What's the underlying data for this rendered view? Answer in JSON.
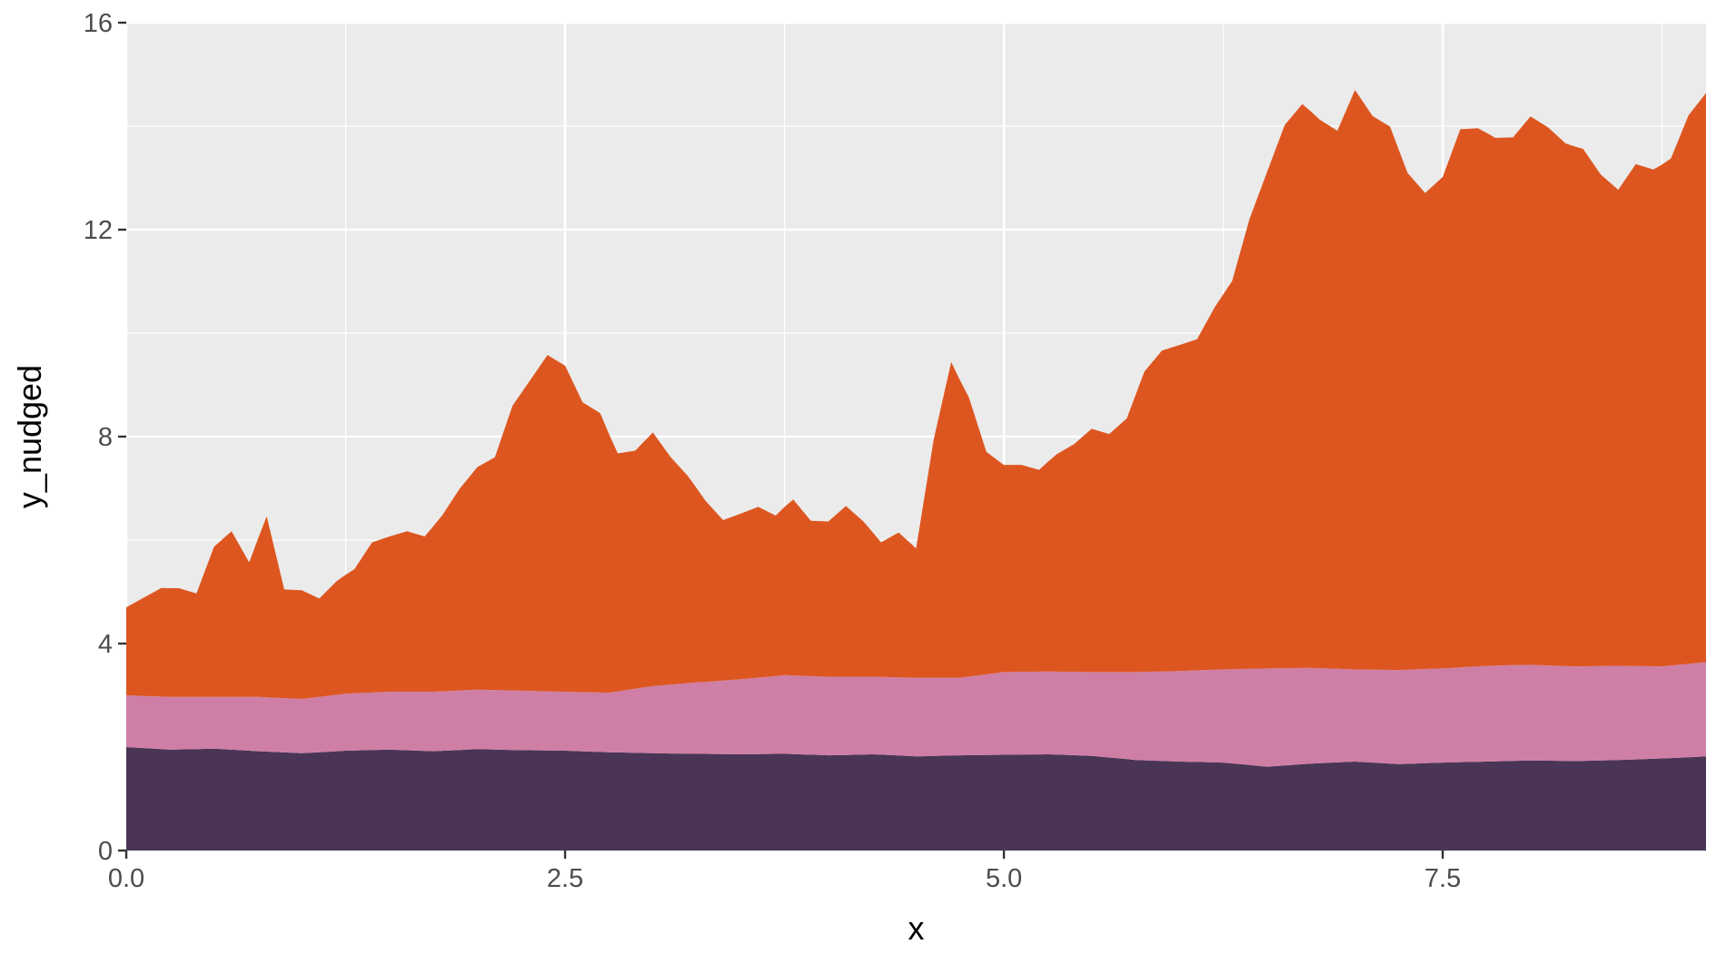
{
  "chart_data": {
    "type": "area",
    "stacked": true,
    "title": "",
    "xlabel": "x",
    "ylabel": "y_nudged",
    "xlim": [
      0,
      9.0
    ],
    "ylim": [
      0,
      16
    ],
    "x_ticks": [
      0.0,
      2.5,
      5.0,
      7.5
    ],
    "x_tick_labels": [
      "0.0",
      "2.5",
      "5.0",
      "7.5"
    ],
    "y_ticks": [
      0,
      4,
      8,
      12,
      16
    ],
    "y_tick_labels": [
      "0",
      "4",
      "8",
      "12",
      "16"
    ],
    "grid": true,
    "legend": "none",
    "colors": {
      "panel_background": "#EBEBEB",
      "grid_line": "#FFFFFF",
      "series": [
        "#4A3556",
        "#CF7FA5",
        "#DD5620"
      ]
    },
    "series": [
      {
        "x": [
          0,
          0.25,
          0.5,
          0.75,
          1.0,
          1.25,
          1.5,
          1.75,
          2.0,
          2.25,
          2.5,
          2.75,
          3.0,
          3.25,
          3.5,
          3.75,
          4.0,
          4.25,
          4.5,
          4.75,
          5.0,
          5.25,
          5.5,
          5.75,
          6.0,
          6.25,
          6.5,
          6.75,
          7.0,
          7.25,
          7.5,
          7.75,
          8.0,
          8.25,
          8.5,
          8.75,
          9.0
        ],
        "values": [
          2.0,
          1.95,
          1.97,
          1.92,
          1.88,
          1.93,
          1.95,
          1.92,
          1.96,
          1.94,
          1.93,
          1.9,
          1.88,
          1.87,
          1.86,
          1.87,
          1.84,
          1.86,
          1.82,
          1.84,
          1.85,
          1.86,
          1.83,
          1.75,
          1.72,
          1.7,
          1.62,
          1.68,
          1.72,
          1.67,
          1.7,
          1.72,
          1.74,
          1.73,
          1.75,
          1.78,
          1.82
        ]
      },
      {
        "x": [
          0,
          0.25,
          0.5,
          0.75,
          1.0,
          1.25,
          1.5,
          1.75,
          2.0,
          2.25,
          2.5,
          2.75,
          3.0,
          3.25,
          3.5,
          3.75,
          4.0,
          4.25,
          4.5,
          4.75,
          5.0,
          5.25,
          5.5,
          5.75,
          6.0,
          6.25,
          6.5,
          6.75,
          7.0,
          7.25,
          7.5,
          7.75,
          8.0,
          8.25,
          8.5,
          8.75,
          9.0
        ],
        "values": [
          1.0,
          1.02,
          1.0,
          1.05,
          1.05,
          1.1,
          1.12,
          1.15,
          1.15,
          1.15,
          1.14,
          1.15,
          1.3,
          1.38,
          1.45,
          1.52,
          1.52,
          1.5,
          1.52,
          1.5,
          1.6,
          1.6,
          1.62,
          1.7,
          1.75,
          1.8,
          1.9,
          1.85,
          1.78,
          1.82,
          1.82,
          1.85,
          1.85,
          1.83,
          1.82,
          1.78,
          1.82
        ]
      },
      {
        "x": [
          0,
          0.1,
          0.2,
          0.3,
          0.4,
          0.5,
          0.6,
          0.7,
          0.8,
          0.9,
          1.0,
          1.1,
          1.2,
          1.3,
          1.4,
          1.5,
          1.6,
          1.7,
          1.8,
          1.9,
          2.0,
          2.1,
          2.2,
          2.3,
          2.4,
          2.5,
          2.6,
          2.7,
          2.8,
          2.9,
          3.0,
          3.1,
          3.2,
          3.3,
          3.4,
          3.5,
          3.6,
          3.7,
          3.8,
          3.9,
          4.0,
          4.1,
          4.2,
          4.3,
          4.4,
          4.5,
          4.6,
          4.7,
          4.8,
          4.9,
          5.0,
          5.1,
          5.2,
          5.3,
          5.4,
          5.5,
          5.6,
          5.7,
          5.8,
          5.9,
          6.0,
          6.1,
          6.2,
          6.3,
          6.4,
          6.5,
          6.6,
          6.7,
          6.8,
          6.9,
          7.0,
          7.1,
          7.2,
          7.3,
          7.4,
          7.5,
          7.6,
          7.7,
          7.8,
          7.9,
          8.0,
          8.1,
          8.2,
          8.3,
          8.4,
          8.5,
          8.6,
          8.7,
          8.8,
          8.9,
          9.0
        ],
        "values": [
          1.7,
          1.9,
          2.1,
          2.1,
          2.0,
          2.9,
          3.2,
          2.6,
          3.5,
          2.1,
          2.1,
          1.9,
          2.2,
          2.4,
          2.9,
          3.0,
          3.1,
          3.0,
          3.4,
          3.9,
          4.3,
          4.5,
          5.5,
          6.0,
          6.5,
          6.3,
          5.6,
          5.4,
          4.6,
          4.6,
          4.9,
          4.4,
          4.0,
          3.5,
          3.1,
          3.2,
          3.3,
          3.1,
          3.4,
          3.0,
          3.0,
          3.3,
          3.0,
          2.6,
          2.8,
          2.5,
          4.6,
          6.1,
          5.4,
          4.3,
          4.0,
          4.0,
          3.9,
          4.2,
          4.4,
          4.7,
          4.6,
          4.9,
          5.8,
          6.2,
          6.3,
          6.4,
          7.0,
          7.5,
          8.7,
          9.6,
          10.5,
          10.9,
          10.6,
          10.4,
          11.2,
          10.7,
          10.5,
          9.6,
          9.2,
          9.5,
          10.4,
          10.4,
          10.2,
          10.2,
          10.6,
          10.4,
          10.1,
          10.0,
          9.5,
          9.2,
          9.7,
          9.6,
          9.8,
          10.6,
          11.0
        ]
      }
    ]
  }
}
